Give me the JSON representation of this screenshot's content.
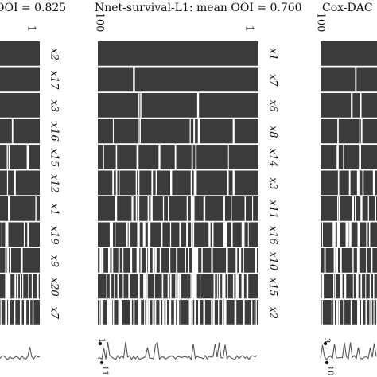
{
  "chart_data": [
    {
      "type": "heatmap",
      "title": "OOI = 0.825",
      "x_tick_labels": [
        "1"
      ],
      "variables": [
        "x2",
        "x17",
        "x3",
        "x16",
        "x15",
        "x12",
        "x1",
        "x19",
        "x9",
        "x20",
        "x7"
      ],
      "colors": {
        "fill": "#3b3b3b",
        "line": "#ffffff",
        "trace": "#555555"
      }
    },
    {
      "type": "heatmap",
      "title": "Nnet-survival-L1: mean OOI = 0.760",
      "x_tick_labels": [
        "100",
        "1"
      ],
      "variables": [
        "x1",
        "x7",
        "x6",
        "x8",
        "x14",
        "x3",
        "x11",
        "x16",
        "x10",
        "x15",
        "x2"
      ],
      "trace_labels": [
        "1",
        "11"
      ],
      "colors": {
        "fill": "#3b3b3b",
        "line": "#ffffff",
        "trace": "#555555"
      }
    },
    {
      "type": "heatmap",
      "title": "Cox-DAC",
      "x_tick_labels": [
        "100"
      ],
      "trace_labels": [
        "3",
        "10"
      ],
      "colors": {
        "fill": "#3b3b3b",
        "line": "#ffffff",
        "trace": "#555555"
      }
    }
  ]
}
